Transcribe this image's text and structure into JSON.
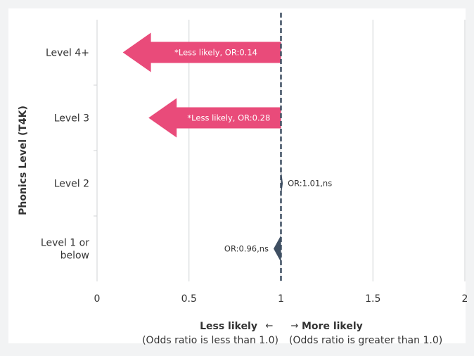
{
  "chart_data": {
    "type": "bar",
    "ylabel": "Phonics Level (T4K)",
    "xlim": [
      0,
      2
    ],
    "x_ticks": [
      "0",
      "0.5",
      "1",
      "1.5",
      "2"
    ],
    "reference_line": 1,
    "grid": "vertical",
    "categories": [
      {
        "lines": [
          "Level 4+"
        ]
      },
      {
        "lines": [
          "Level 3"
        ]
      },
      {
        "lines": [
          "Level 2"
        ]
      },
      {
        "lines": [
          "Level 1 or",
          "below"
        ]
      }
    ],
    "values": [
      0.14,
      0.28,
      1.01,
      0.96
    ],
    "bar_labels": [
      "*Less likely, OR:0.14",
      "*Less likely, OR:0.28",
      "OR:1.01,ns",
      "OR:0.96,ns"
    ],
    "significant": [
      true,
      true,
      false,
      false
    ],
    "direction_labels": {
      "left": {
        "title": "Less likely",
        "arrow": "←",
        "note": "(Odds ratio is less than 1.0)"
      },
      "right": {
        "title": "More likely",
        "arrow": "→",
        "note": "(Odds ratio is greater than 1.0)"
      }
    },
    "colors": {
      "significant": "#e94b7a",
      "nonsignificant": "#3f4f62",
      "reference_line": "#3f4f62",
      "grid": "#d0d3d6",
      "text": "#333333"
    }
  }
}
